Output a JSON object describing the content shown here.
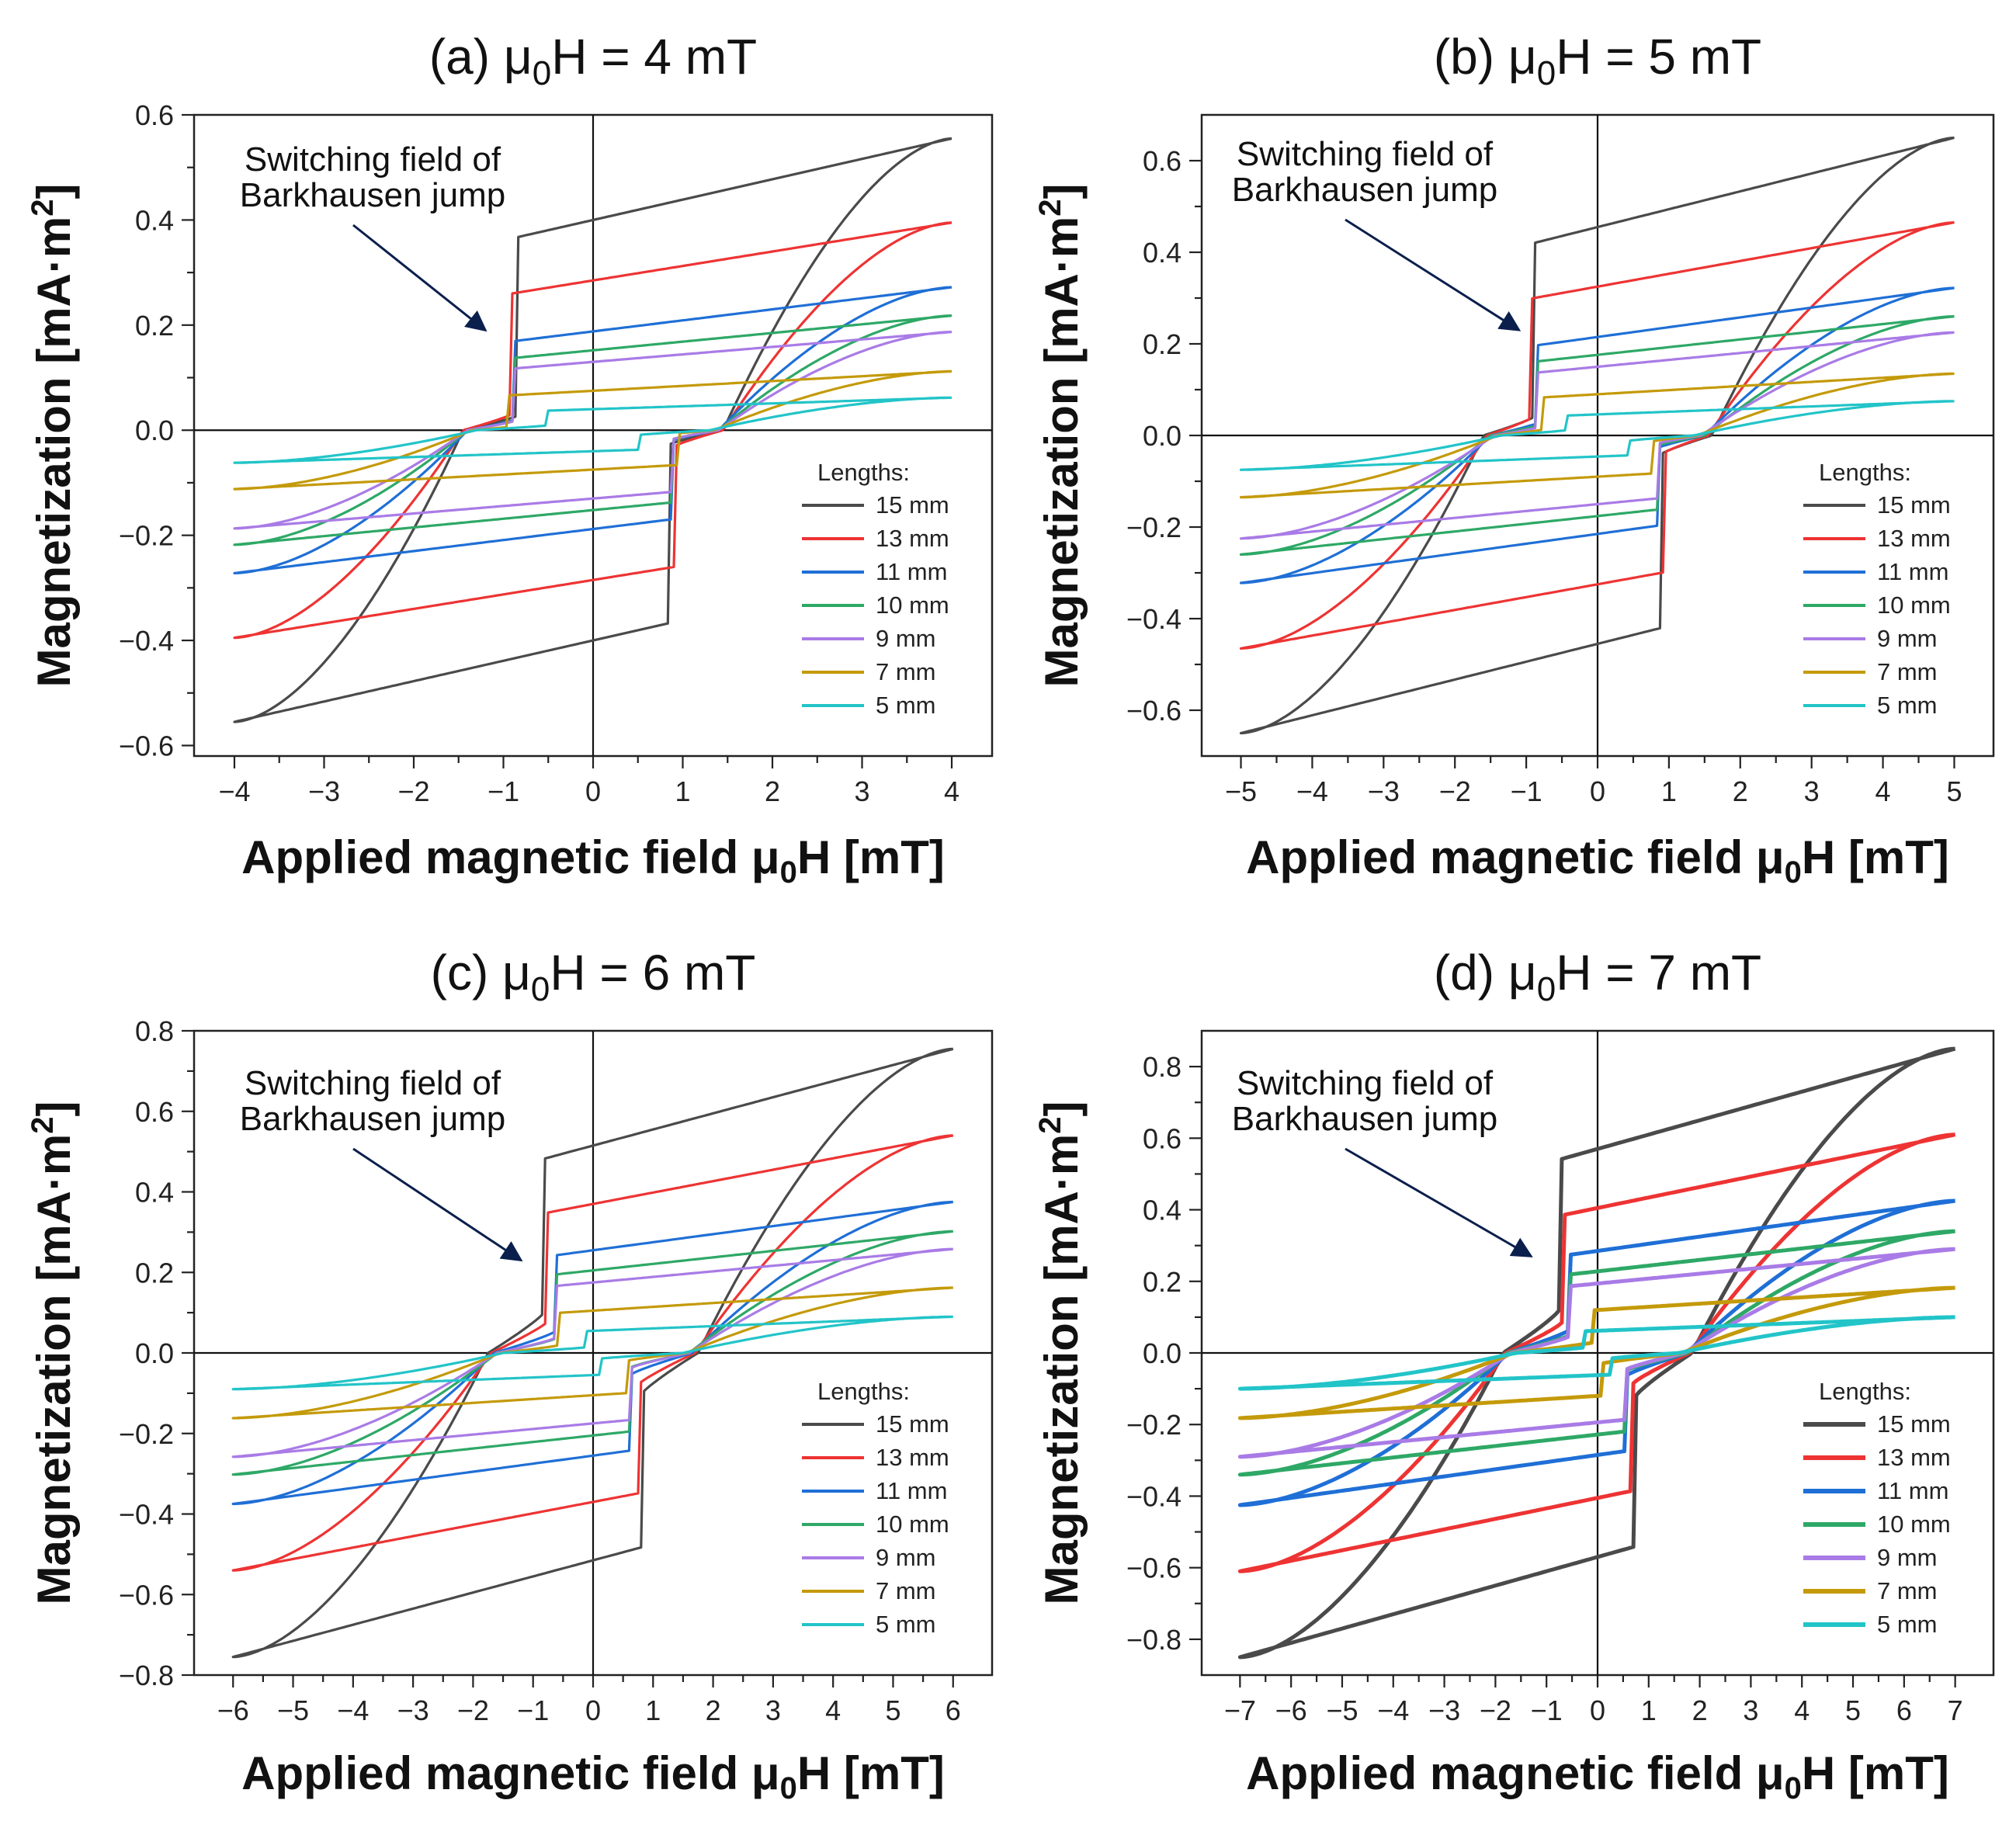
{
  "chart_data": [
    {
      "type": "line",
      "panel": "(a)",
      "title": "(a) μ₀H = 4 mT",
      "title_parts": {
        "pre": "(a) μ",
        "sub": "0",
        "post": "H = 4 mT"
      },
      "xlabel": "Applied magnetic field μ₀H [mT]",
      "xlabel_parts": {
        "pre": "Applied magnetic field μ",
        "sub": "0",
        "post": "H [mT]"
      },
      "ylabel": "Magnetization [mA·m²]",
      "ylabel_parts": {
        "pre": "Magnetization [mA·m",
        "sup": "2",
        "post": "]"
      },
      "xlim": [
        -4.45,
        4.45
      ],
      "ylim": [
        -0.62,
        0.6
      ],
      "xticks": [
        -4,
        -3,
        -2,
        -1,
        0,
        1,
        2,
        3,
        4
      ],
      "xtick_labels": [
        "−4",
        "−3",
        "−2",
        "−1",
        "0",
        "1",
        "2",
        "3",
        "4"
      ],
      "yticks": [
        -0.6,
        -0.4,
        -0.2,
        0.0,
        0.2,
        0.4,
        0.6
      ],
      "ytick_labels": [
        "−0.6",
        "−0.4",
        "−0.2",
        "0.0",
        "0.2",
        "0.4",
        "0.6"
      ],
      "annotation": {
        "lines": [
          "Switching field of",
          "Barkhausen jump"
        ],
        "arrow_target": [
          -1.2,
          0.19
        ]
      },
      "legend": {
        "title": "Lengths:",
        "placement": "lower-right"
      },
      "H_max": 4,
      "series": [
        {
          "name": "15 mm",
          "color": "#4a4a4a",
          "Ms": 0.555,
          "Mr": 0.4,
          "Hc": 1.45,
          "Hj": 0.85,
          "Mj": 0.34
        },
        {
          "name": "13 mm",
          "color": "#ee3333",
          "Ms": 0.395,
          "Mr": 0.285,
          "Hc": 1.45,
          "Hj": 0.92,
          "Mj": 0.23
        },
        {
          "name": "11 mm",
          "color": "#1f6fd6",
          "Ms": 0.272,
          "Mr": 0.188,
          "Hc": 1.4,
          "Hj": 0.88,
          "Mj": 0.15
        },
        {
          "name": "10 mm",
          "color": "#2ea866",
          "Ms": 0.218,
          "Mr": 0.152,
          "Hc": 1.4,
          "Hj": 0.88,
          "Mj": 0.12
        },
        {
          "name": "9 mm",
          "color": "#a97be6",
          "Ms": 0.187,
          "Mr": 0.13,
          "Hc": 1.4,
          "Hj": 0.88,
          "Mj": 0.1
        },
        {
          "name": "7 mm",
          "color": "#c49a0a",
          "Ms": 0.112,
          "Mr": 0.075,
          "Hc": 1.35,
          "Hj": 0.95,
          "Mj": 0.06
        },
        {
          "name": "5 mm",
          "color": "#22c4c8",
          "Ms": 0.062,
          "Mr": 0.04,
          "Hc": 1.3,
          "Hj": 0.5,
          "Mj": 0.028
        }
      ]
    },
    {
      "type": "line",
      "panel": "(b)",
      "title": "(b) μ₀H = 5 mT",
      "title_parts": {
        "pre": "(b) μ",
        "sub": "0",
        "post": "H = 5 mT"
      },
      "xlabel": "Applied magnetic field μ₀H [mT]",
      "xlabel_parts": {
        "pre": "Applied magnetic field μ",
        "sub": "0",
        "post": "H [mT]"
      },
      "ylabel": "Magnetization [mA·m²]",
      "ylabel_parts": {
        "pre": "Magnetization [mA·m",
        "sup": "2",
        "post": "]"
      },
      "xlim": [
        -5.55,
        5.55
      ],
      "ylim": [
        -0.7,
        0.7
      ],
      "xticks": [
        -5,
        -4,
        -3,
        -2,
        -1,
        0,
        1,
        2,
        3,
        4,
        5
      ],
      "xtick_labels": [
        "−5",
        "−4",
        "−3",
        "−2",
        "−1",
        "0",
        "1",
        "2",
        "3",
        "4",
        "5"
      ],
      "yticks": [
        -0.6,
        -0.4,
        -0.2,
        0.0,
        0.2,
        0.4,
        0.6
      ],
      "ytick_labels": [
        "−0.6",
        "−0.4",
        "−0.2",
        "0.0",
        "0.2",
        "0.4",
        "0.6"
      ],
      "annotation": {
        "lines": [
          "Switching field of",
          "Barkhausen jump"
        ],
        "arrow_target": [
          -1.1,
          0.23
        ]
      },
      "legend": {
        "title": "Lengths:",
        "placement": "lower-right"
      },
      "H_max": 5,
      "series": [
        {
          "name": "15 mm",
          "color": "#4a4a4a",
          "Ms": 0.65,
          "Mr": 0.455,
          "Hc": 1.6,
          "Hj": 0.9,
          "Mj": 0.38
        },
        {
          "name": "13 mm",
          "color": "#ee3333",
          "Ms": 0.465,
          "Mr": 0.325,
          "Hc": 1.55,
          "Hj": 0.92,
          "Mj": 0.26
        },
        {
          "name": "11 mm",
          "color": "#1f6fd6",
          "Ms": 0.322,
          "Mr": 0.215,
          "Hc": 1.5,
          "Hj": 0.85,
          "Mj": 0.17
        },
        {
          "name": "10 mm",
          "color": "#2ea866",
          "Ms": 0.26,
          "Mr": 0.176,
          "Hc": 1.5,
          "Hj": 0.85,
          "Mj": 0.14
        },
        {
          "name": "9 mm",
          "color": "#a97be6",
          "Ms": 0.225,
          "Mr": 0.15,
          "Hc": 1.45,
          "Hj": 0.85,
          "Mj": 0.12
        },
        {
          "name": "7 mm",
          "color": "#c49a0a",
          "Ms": 0.135,
          "Mr": 0.09,
          "Hc": 1.4,
          "Hj": 0.75,
          "Mj": 0.07
        },
        {
          "name": "5 mm",
          "color": "#22c4c8",
          "Ms": 0.075,
          "Mr": 0.046,
          "Hc": 1.35,
          "Hj": 0.45,
          "Mj": 0.032
        }
      ]
    },
    {
      "type": "line",
      "panel": "(c)",
      "title": "(c) μ₀H = 6 mT",
      "title_parts": {
        "pre": "(c) μ",
        "sub": "0",
        "post": "H = 6 mT"
      },
      "xlabel": "Applied magnetic field μ₀H [mT]",
      "xlabel_parts": {
        "pre": "Applied magnetic field μ",
        "sub": "0",
        "post": "H [mT]"
      },
      "ylabel": "Magnetization [mA·m²]",
      "ylabel_parts": {
        "pre": "Magnetization [mA·m",
        "sup": "2",
        "post": "]"
      },
      "xlim": [
        -6.65,
        6.65
      ],
      "ylim": [
        -0.8,
        0.8
      ],
      "xticks": [
        -6,
        -5,
        -4,
        -3,
        -2,
        -1,
        0,
        1,
        2,
        3,
        4,
        5,
        6
      ],
      "xtick_labels": [
        "−6",
        "−5",
        "−4",
        "−3",
        "−2",
        "−1",
        "0",
        "1",
        "2",
        "3",
        "4",
        "5",
        "6"
      ],
      "yticks": [
        -0.8,
        -0.6,
        -0.4,
        -0.2,
        0.0,
        0.2,
        0.4,
        0.6,
        0.8
      ],
      "ytick_labels": [
        "−0.8",
        "−0.6",
        "−0.4",
        "−0.2",
        "0.0",
        "0.2",
        "0.4",
        "0.6",
        "0.8"
      ],
      "annotation": {
        "lines": [
          "Switching field of",
          "Barkhausen jump"
        ],
        "arrow_target": [
          -1.2,
          0.23
        ]
      },
      "legend": {
        "title": "Lengths:",
        "placement": "lower-right"
      },
      "H_max": 6,
      "series": [
        {
          "name": "15 mm",
          "color": "#4a4a4a",
          "Ms": 0.755,
          "Mr": 0.515,
          "Hc": 1.75,
          "Hj": 0.8,
          "Mj": 0.38
        },
        {
          "name": "13 mm",
          "color": "#ee3333",
          "Ms": 0.54,
          "Mr": 0.37,
          "Hc": 1.7,
          "Hj": 0.75,
          "Mj": 0.27
        },
        {
          "name": "11 mm",
          "color": "#1f6fd6",
          "Ms": 0.375,
          "Mr": 0.255,
          "Hc": 1.65,
          "Hj": 0.65,
          "Mj": 0.19
        },
        {
          "name": "10 mm",
          "color": "#2ea866",
          "Ms": 0.302,
          "Mr": 0.205,
          "Hc": 1.6,
          "Hj": 0.65,
          "Mj": 0.16
        },
        {
          "name": "9 mm",
          "color": "#a97be6",
          "Ms": 0.258,
          "Mr": 0.175,
          "Hc": 1.6,
          "Hj": 0.65,
          "Mj": 0.13
        },
        {
          "name": "7 mm",
          "color": "#c49a0a",
          "Ms": 0.162,
          "Mr": 0.105,
          "Hc": 1.55,
          "Hj": 0.55,
          "Mj": 0.08
        },
        {
          "name": "5 mm",
          "color": "#22c4c8",
          "Ms": 0.09,
          "Mr": 0.055,
          "Hc": 1.5,
          "Hj": 0.1,
          "Mj": 0.04
        }
      ]
    },
    {
      "type": "line",
      "panel": "(d)",
      "title": "(d) μ₀H = 7 mT",
      "title_parts": {
        "pre": "(d) μ",
        "sub": "0",
        "post": "H = 7 mT"
      },
      "xlabel": "Applied magnetic field μ₀H [mT]",
      "xlabel_parts": {
        "pre": "Applied magnetic field μ",
        "sub": "0",
        "post": "H [mT]"
      },
      "ylabel": "Magnetization [mA·m²]",
      "ylabel_parts": {
        "pre": "Magnetization [mA·m",
        "sup": "2",
        "post": "]"
      },
      "xlim": [
        -7.75,
        7.75
      ],
      "ylim": [
        -0.9,
        0.9
      ],
      "xticks": [
        -7,
        -6,
        -5,
        -4,
        -3,
        -2,
        -1,
        0,
        1,
        2,
        3,
        4,
        5,
        6,
        7
      ],
      "xtick_labels": [
        "−7",
        "−6",
        "−5",
        "−4",
        "−3",
        "−2",
        "−1",
        "0",
        "1",
        "2",
        "3",
        "4",
        "5",
        "6",
        "7"
      ],
      "yticks": [
        -0.8,
        -0.6,
        -0.4,
        -0.2,
        0.0,
        0.2,
        0.4,
        0.6,
        0.8
      ],
      "ytick_labels": [
        "−0.8",
        "−0.6",
        "−0.4",
        "−0.2",
        "0.0",
        "0.2",
        "0.4",
        "0.6",
        "0.8"
      ],
      "annotation": {
        "lines": [
          "Switching field of",
          "Barkhausen jump"
        ],
        "arrow_target": [
          -1.3,
          0.27
        ]
      },
      "legend": {
        "title": "Lengths:",
        "placement": "lower-right"
      },
      "H_max": 7,
      "series": [
        {
          "name": "15 mm",
          "color": "#4a4a4a",
          "Ms": 0.85,
          "Mr": 0.57,
          "Hc": 1.85,
          "Hj": 0.75,
          "Mj": 0.42
        },
        {
          "name": "13 mm",
          "color": "#ee3333",
          "Ms": 0.61,
          "Mr": 0.405,
          "Hc": 1.8,
          "Hj": 0.7,
          "Mj": 0.3
        },
        {
          "name": "11 mm",
          "color": "#1f6fd6",
          "Ms": 0.425,
          "Mr": 0.285,
          "Hc": 1.75,
          "Hj": 0.55,
          "Mj": 0.21
        },
        {
          "name": "10 mm",
          "color": "#2ea866",
          "Ms": 0.34,
          "Mr": 0.228,
          "Hc": 1.75,
          "Hj": 0.55,
          "Mj": 0.17
        },
        {
          "name": "9 mm",
          "color": "#a97be6",
          "Ms": 0.29,
          "Mr": 0.194,
          "Hc": 1.7,
          "Hj": 0.55,
          "Mj": 0.14
        },
        {
          "name": "7 mm",
          "color": "#c49a0a",
          "Ms": 0.182,
          "Mr": 0.12,
          "Hc": 1.65,
          "Hj": 0.1,
          "Mj": 0.09
        },
        {
          "name": "5 mm",
          "color": "#22c4c8",
          "Ms": 0.1,
          "Mr": 0.062,
          "Hc": 1.6,
          "Hj": 0.25,
          "Mj": 0.045
        }
      ]
    }
  ]
}
